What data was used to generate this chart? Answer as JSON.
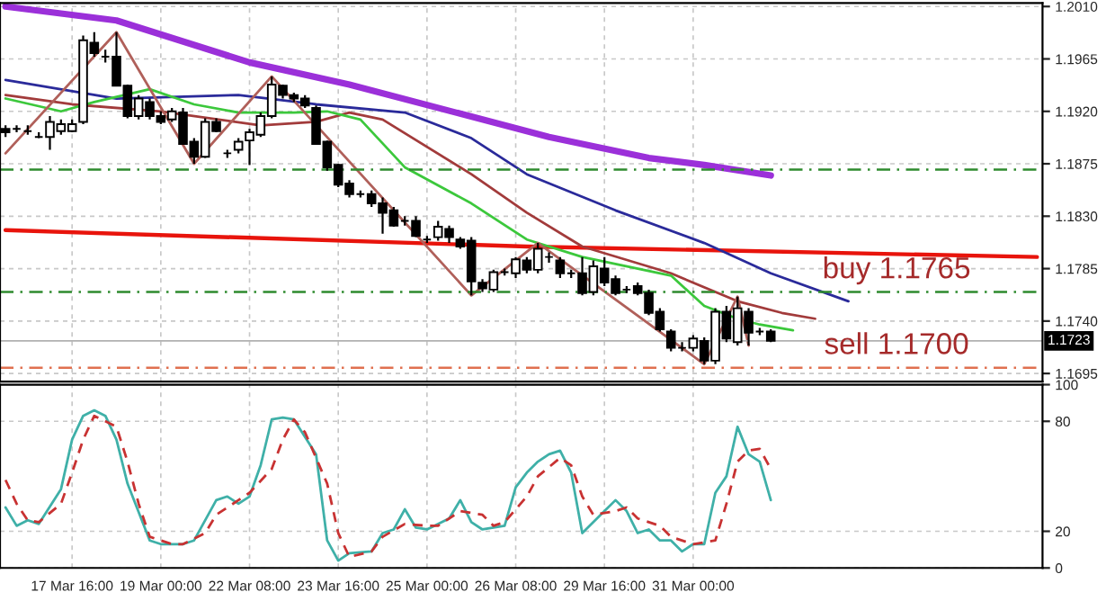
{
  "chart_data": [
    {
      "type": "candlestick",
      "tick_labels": "y",
      "grid": true,
      "legend": false,
      "categories": [
        null,
        null,
        null,
        null,
        null,
        null,
        null,
        null,
        null,
        null,
        null,
        null,
        null,
        null,
        null,
        null,
        null,
        null,
        null,
        null,
        null,
        null,
        null,
        null,
        null,
        null,
        null,
        null,
        null,
        null,
        null,
        null,
        null,
        null,
        null,
        null,
        null,
        null,
        null,
        null,
        null,
        null,
        null,
        null,
        null,
        null,
        null,
        null,
        null,
        null,
        null,
        null,
        null,
        null,
        null,
        null,
        null,
        null,
        null,
        null,
        null,
        null,
        null,
        null,
        null,
        null,
        null,
        null,
        null,
        null,
        null,
        null,
        null,
        null,
        null,
        null,
        null,
        null,
        null,
        null,
        null,
        null,
        null,
        null,
        null,
        null,
        null,
        null,
        null,
        null,
        null,
        null,
        null,
        null
      ],
      "ohlc": [
        [
          1.1905,
          1.1908,
          1.1898,
          1.1902
        ],
        [
          1.1905,
          1.1908,
          1.1902,
          1.1905
        ],
        [
          1.1903,
          1.1908,
          1.19,
          1.1903
        ],
        [
          1.1898,
          1.1902,
          1.1897,
          1.1898
        ],
        [
          1.1898,
          1.1916,
          1.1887,
          1.1911
        ],
        [
          1.1903,
          1.1913,
          1.19,
          1.1909
        ],
        [
          1.1903,
          1.1913,
          1.1902,
          1.1909
        ],
        [
          1.1911,
          1.1985,
          1.1909,
          1.1981
        ],
        [
          1.1979,
          1.1988,
          1.1967,
          1.197
        ],
        [
          1.1967,
          1.1973,
          1.1962,
          1.1967
        ],
        [
          1.1967,
          1.1988,
          1.1942,
          1.1942
        ],
        [
          1.1942,
          1.1943,
          1.1914,
          1.1916
        ],
        [
          1.1916,
          1.1934,
          1.1913,
          1.1931
        ],
        [
          1.1928,
          1.1931,
          1.1913,
          1.1916
        ],
        [
          1.1916,
          1.192,
          1.1909,
          1.1911
        ],
        [
          1.1913,
          1.1923,
          1.1911,
          1.192
        ],
        [
          1.1919,
          1.1923,
          1.1892,
          1.1892
        ],
        [
          1.1894,
          1.1897,
          1.1875,
          1.1881
        ],
        [
          1.1881,
          1.1914,
          1.188,
          1.1911
        ],
        [
          1.1911,
          1.1914,
          1.1902,
          1.1903
        ],
        [
          1.1884,
          1.1887,
          1.188,
          1.1884
        ],
        [
          1.1887,
          1.1897,
          1.1884,
          1.1894
        ],
        [
          1.1895,
          1.1905,
          1.1874,
          1.1902
        ],
        [
          1.19,
          1.1919,
          1.1898,
          1.1916
        ],
        [
          1.1916,
          1.195,
          1.1914,
          1.1943
        ],
        [
          1.1942,
          1.1943,
          1.1931,
          1.1934
        ],
        [
          1.1934,
          1.1936,
          1.1928,
          1.1931
        ],
        [
          1.1931,
          1.1934,
          1.1923,
          1.1925
        ],
        [
          1.1923,
          1.1925,
          1.1892,
          1.1892
        ],
        [
          1.1894,
          1.1895,
          1.1869,
          1.1872
        ],
        [
          1.1874,
          1.1875,
          1.1855,
          1.1857
        ],
        [
          1.1858,
          1.1861,
          1.1846,
          1.1849
        ],
        [
          1.1849,
          1.1852,
          1.1846,
          1.1849
        ],
        [
          1.1849,
          1.1852,
          1.1838,
          1.1841
        ],
        [
          1.1841,
          1.1846,
          1.1815,
          1.1833
        ],
        [
          1.1835,
          1.1838,
          1.1821,
          1.1822
        ],
        [
          1.1826,
          1.183,
          1.1822,
          1.1826
        ],
        [
          1.1826,
          1.183,
          1.1812,
          1.1813
        ],
        [
          1.181,
          1.1813,
          1.1807,
          1.181
        ],
        [
          1.1812,
          1.1826,
          1.1809,
          1.1821
        ],
        [
          1.1819,
          1.1822,
          1.1807,
          1.1812
        ],
        [
          1.181,
          1.1812,
          1.1802,
          1.1804
        ],
        [
          1.1809,
          1.1812,
          1.1762,
          1.1774
        ],
        [
          1.1773,
          1.1776,
          1.1765,
          1.1768
        ],
        [
          1.1767,
          1.1784,
          1.1765,
          1.1782
        ],
        [
          1.1782,
          1.1785,
          1.1779,
          1.1782
        ],
        [
          1.1781,
          1.1795,
          1.1777,
          1.1793
        ],
        [
          1.1792,
          1.1795,
          1.1781,
          1.1784
        ],
        [
          1.1784,
          1.1807,
          1.1781,
          1.1802
        ],
        [
          1.1795,
          1.1799,
          1.179,
          1.1795
        ],
        [
          1.1792,
          1.1795,
          1.1777,
          1.1781
        ],
        [
          1.1781,
          1.1784,
          1.1777,
          1.1781
        ],
        [
          1.1781,
          1.1795,
          1.1762,
          1.1764
        ],
        [
          1.1765,
          1.1792,
          1.1762,
          1.1787
        ],
        [
          1.1785,
          1.1795,
          1.177,
          1.1773
        ],
        [
          1.1776,
          1.1779,
          1.1762,
          1.1764
        ],
        [
          1.1767,
          1.177,
          1.1764,
          1.1767
        ],
        [
          1.177,
          1.1773,
          1.1762,
          1.1764
        ],
        [
          1.1764,
          1.1767,
          1.1745,
          1.1747
        ],
        [
          1.1748,
          1.1751,
          1.1731,
          1.1733
        ],
        [
          1.1731,
          1.1733,
          1.1714,
          1.1717
        ],
        [
          1.1717,
          1.1722,
          1.1714,
          1.1717
        ],
        [
          1.1717,
          1.1728,
          1.1714,
          1.1725
        ],
        [
          1.1723,
          1.1726,
          1.1703,
          1.1706
        ],
        [
          1.1706,
          1.1751,
          1.1703,
          1.1748
        ],
        [
          1.1748,
          1.1753,
          1.1722,
          1.1725
        ],
        [
          1.1722,
          1.1761,
          1.1719,
          1.1751
        ],
        [
          1.1748,
          1.1751,
          1.1719,
          1.173
        ],
        [
          1.1731,
          1.1734,
          1.1728,
          1.1731
        ],
        [
          1.1731,
          1.1733,
          1.1722,
          1.1723
        ],
        null,
        null,
        null,
        null,
        null,
        null,
        null,
        null,
        null,
        null,
        null,
        null,
        null,
        null,
        null,
        null,
        null,
        null,
        null,
        null,
        null,
        null,
        null,
        null
      ],
      "series": [
        {
          "type": "line",
          "color": "#9b30d9",
          "values": [
            1.201,
            null,
            null,
            null,
            null,
            null,
            null,
            null,
            null,
            null,
            1.1998,
            null,
            null,
            null,
            null,
            null,
            null,
            null,
            null,
            null,
            null,
            null,
            1.1962,
            null,
            null,
            null,
            null,
            null,
            null,
            null,
            null,
            1.1943,
            null,
            null,
            null,
            null,
            null,
            null,
            null,
            null,
            null,
            null,
            null,
            null,
            null,
            null,
            null,
            null,
            null,
            1.1898,
            null,
            null,
            null,
            null,
            null,
            null,
            null,
            null,
            1.188,
            null,
            null,
            null,
            null,
            1.1874,
            null,
            null,
            null,
            null,
            null,
            1.1865,
            null,
            null,
            null,
            null,
            null,
            null,
            null,
            null,
            null,
            null,
            null,
            null,
            null,
            null,
            null,
            null,
            null,
            null,
            null,
            null,
            null,
            null,
            null,
            null
          ]
        },
        {
          "type": "line",
          "color": "#e8140c",
          "values": [
            1.1818,
            null,
            null,
            null,
            null,
            null,
            null,
            null,
            null,
            null,
            null,
            null,
            null,
            null,
            null,
            null,
            null,
            null,
            null,
            null,
            null,
            null,
            null,
            null,
            null,
            null,
            null,
            null,
            null,
            null,
            null,
            null,
            null,
            null,
            null,
            null,
            null,
            null,
            null,
            null,
            null,
            null,
            null,
            null,
            null,
            null,
            null,
            1.1804,
            null,
            null,
            null,
            null,
            null,
            null,
            null,
            null,
            null,
            null,
            null,
            null,
            null,
            null,
            null,
            null,
            null,
            null,
            null,
            null,
            null,
            null,
            null,
            null,
            null,
            null,
            null,
            null,
            null,
            null,
            null,
            null,
            null,
            null,
            null,
            null,
            null,
            null,
            null,
            null,
            null,
            null,
            null,
            null,
            null,
            1.1795
          ]
        },
        {
          "type": "line",
          "color": "#2a2a9a",
          "values": [
            1.1947,
            null,
            null,
            null,
            null,
            null,
            null,
            null,
            null,
            null,
            1.1931,
            null,
            null,
            null,
            null,
            null,
            null,
            null,
            null,
            null,
            null,
            1.1934,
            null,
            null,
            null,
            null,
            null,
            null,
            1.1926,
            null,
            null,
            null,
            null,
            null,
            null,
            null,
            1.1919,
            null,
            null,
            null,
            null,
            null,
            1.1897,
            null,
            null,
            null,
            null,
            1.1866,
            null,
            null,
            null,
            null,
            null,
            null,
            null,
            1.1835,
            null,
            null,
            null,
            null,
            null,
            null,
            null,
            1.1807,
            null,
            null,
            null,
            null,
            null,
            1.1781,
            null,
            null,
            null,
            null,
            null,
            null,
            1.1757,
            null,
            null,
            null,
            null,
            null,
            null,
            null,
            null,
            null,
            null,
            null,
            null,
            null,
            null,
            null,
            null,
            null
          ]
        },
        {
          "type": "line",
          "color": "#a23b3b",
          "values": [
            1.1934,
            null,
            null,
            null,
            null,
            null,
            1.1926,
            null,
            null,
            null,
            null,
            null,
            null,
            null,
            1.192,
            null,
            null,
            null,
            null,
            null,
            null,
            null,
            null,
            1.1908,
            null,
            null,
            null,
            null,
            1.1911,
            null,
            null,
            1.1919,
            null,
            null,
            1.1913,
            null,
            null,
            null,
            null,
            null,
            null,
            null,
            1.1866,
            null,
            null,
            null,
            null,
            1.1833,
            null,
            null,
            null,
            null,
            1.1804,
            null,
            null,
            null,
            null,
            null,
            null,
            null,
            1.1781,
            null,
            null,
            null,
            null,
            null,
            1.1757,
            null,
            null,
            null,
            1.1747,
            null,
            null,
            1.1742,
            null,
            null,
            null,
            null,
            null,
            null,
            null,
            null,
            null,
            null,
            null,
            null,
            null,
            null,
            null,
            null,
            null,
            null,
            null,
            null
          ]
        },
        {
          "type": "line",
          "color": "#3cc83c",
          "values": [
            1.1931,
            null,
            null,
            null,
            null,
            1.192,
            null,
            null,
            1.1928,
            null,
            null,
            null,
            null,
            1.1939,
            null,
            null,
            null,
            1.1926,
            null,
            null,
            null,
            1.1919,
            null,
            null,
            null,
            null,
            1.1919,
            null,
            null,
            1.192,
            null,
            null,
            1.1913,
            null,
            null,
            null,
            1.1872,
            null,
            null,
            null,
            null,
            null,
            1.1841,
            null,
            null,
            null,
            null,
            1.181,
            null,
            null,
            null,
            null,
            1.1795,
            null,
            null,
            null,
            null,
            null,
            null,
            null,
            1.1779,
            null,
            null,
            1.1753,
            null,
            null,
            1.1742,
            null,
            1.1737,
            null,
            null,
            1.1732,
            null,
            null,
            null,
            null,
            null,
            null,
            null,
            null,
            null,
            null,
            null,
            null,
            null,
            null,
            null,
            null,
            null,
            null,
            null,
            null,
            null,
            null
          ]
        },
        {
          "type": "line",
          "color": "#b0605a",
          "values": [
            1.1884,
            null,
            null,
            null,
            null,
            null,
            null,
            null,
            null,
            null,
            1.1988,
            null,
            null,
            null,
            null,
            null,
            null,
            1.1875,
            null,
            null,
            null,
            null,
            null,
            null,
            1.195,
            null,
            null,
            null,
            null,
            null,
            null,
            null,
            null,
            null,
            null,
            null,
            null,
            null,
            null,
            null,
            null,
            null,
            1.1762,
            null,
            null,
            null,
            null,
            null,
            1.1807,
            null,
            null,
            null,
            null,
            null,
            null,
            null,
            null,
            null,
            null,
            null,
            null,
            null,
            null,
            1.1703,
            null,
            null,
            1.1761,
            1.1719,
            null,
            null,
            null,
            null,
            null,
            null,
            null,
            null,
            null,
            null,
            null,
            null,
            null,
            null,
            null,
            null,
            null,
            null,
            null,
            null,
            null,
            null,
            null,
            null,
            null,
            null
          ]
        }
      ],
      "ylim": [
        1.1688,
        1.2013
      ],
      "yticks": [
        {
          "value": 1.201,
          "label": "1.2010"
        },
        {
          "value": 1.1965,
          "label": "1.1965"
        },
        {
          "value": 1.192,
          "label": "1.1920"
        },
        {
          "value": 1.1875,
          "label": "1.1875"
        },
        {
          "value": 1.183,
          "label": "1.1830"
        },
        {
          "value": 1.1785,
          "label": "1.1785"
        },
        {
          "value": 1.174,
          "label": "1.1740"
        },
        {
          "value": 1.1695,
          "label": "1.1695"
        }
      ],
      "ref_lines": [
        {
          "axis": "y",
          "value": 1.187,
          "color": "#2e8b2e",
          "line_style": "dashed"
        },
        {
          "axis": "y",
          "value": 1.1765,
          "color": "#2e8b2e",
          "line_style": "dashed",
          "label": "buy 1.1765"
        },
        {
          "axis": "y",
          "value": 1.17,
          "color": "#e07050",
          "line_style": "dashed",
          "label": "sell 1.1700"
        },
        {
          "axis": "y",
          "value": 1.1723,
          "color": "#b0b0b0",
          "line_style": "solid",
          "label": "1.1723"
        }
      ]
    },
    {
      "type": "line",
      "grid": true,
      "legend": false,
      "categories": [
        null,
        null,
        null,
        null,
        null,
        null,
        "17 Mar 16:00",
        null,
        null,
        null,
        null,
        null,
        null,
        null,
        "19 Mar 00:00",
        null,
        null,
        null,
        null,
        null,
        null,
        null,
        "22 Mar 08:00",
        null,
        null,
        null,
        null,
        null,
        null,
        null,
        "23 Mar 16:00",
        null,
        null,
        null,
        null,
        null,
        null,
        null,
        "25 Mar 00:00",
        null,
        null,
        null,
        null,
        null,
        null,
        null,
        "26 Mar 08:00",
        null,
        null,
        null,
        null,
        null,
        null,
        null,
        "29 Mar 16:00",
        null,
        null,
        null,
        null,
        null,
        null,
        null,
        "31 Mar 00:00",
        null,
        null,
        null,
        null,
        null,
        null,
        null,
        null,
        null,
        null,
        null,
        null,
        null,
        null,
        null,
        null,
        null,
        null,
        null,
        null,
        null,
        null,
        null,
        null,
        null,
        null,
        null,
        null,
        null,
        null,
        null
      ],
      "series": [
        {
          "color": "#3fb0a8",
          "line_style": "solid",
          "values": [
            33,
            23,
            26,
            24,
            null,
            43,
            70,
            83,
            86,
            83,
            70,
            46,
            null,
            15,
            13,
            null,
            13,
            15,
            null,
            37,
            39,
            35,
            39,
            56,
            81,
            82,
            81,
            null,
            62,
            15,
            4,
            8,
            null,
            9,
            19,
            21,
            32,
            22,
            21,
            null,
            27,
            37,
            25,
            21,
            null,
            23,
            44,
            52,
            58,
            62,
            64,
            52,
            19,
            null,
            31,
            37,
            31,
            19,
            21,
            15,
            15,
            9,
            13,
            13,
            41,
            50,
            77,
            62,
            58,
            37,
            null,
            null,
            null,
            null,
            null,
            null,
            null,
            null,
            null,
            null,
            null,
            null,
            null,
            null,
            null,
            null,
            null,
            null,
            null,
            null,
            null,
            null,
            null,
            null
          ]
        },
        {
          "color": "#c83232",
          "line_style": "dashed",
          "values": [
            48,
            35,
            26,
            25,
            null,
            35,
            52,
            70,
            83,
            null,
            77,
            58,
            35,
            17,
            null,
            13,
            13,
            null,
            19,
            29,
            null,
            37,
            41,
            null,
            54,
            70,
            81,
            74,
            null,
            46,
            19,
            6,
            null,
            9,
            17,
            null,
            24,
            null,
            23,
            23,
            null,
            31,
            null,
            29,
            23,
            25,
            null,
            39,
            50,
            null,
            60,
            56,
            39,
            29,
            null,
            31,
            33,
            27,
            null,
            23,
            17,
            null,
            13,
            null,
            15,
            35,
            58,
            64,
            65,
            54,
            null,
            null,
            null,
            null,
            null,
            null,
            null,
            null,
            null,
            null,
            null,
            null,
            null,
            null,
            null,
            null,
            null,
            null,
            null,
            null,
            null,
            null,
            null,
            null
          ]
        }
      ],
      "ylim": [
        0,
        100
      ],
      "yticks": [
        0,
        20,
        80,
        100
      ]
    }
  ]
}
